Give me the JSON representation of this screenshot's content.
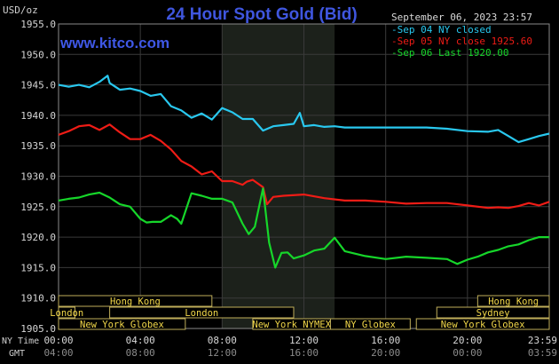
{
  "chart_data": {
    "type": "line",
    "title": "24 Hour Spot Gold (Bid)",
    "brand": "www.kitco.com",
    "ylabel": "USD/oz",
    "timestamp": "September 06, 2023 23:57",
    "ylim": [
      1905.0,
      1955.0
    ],
    "y_ticks": [
      "1955.0",
      "1950.0",
      "1945.0",
      "1940.0",
      "1935.0",
      "1930.0",
      "1925.0",
      "1920.0",
      "1915.0",
      "1910.0",
      "1905.0"
    ],
    "x_row_labels": {
      "ny": "NY Time",
      "gmt": "GMT"
    },
    "x_ticks_ny": [
      "00:00",
      "04:00",
      "08:00",
      "12:00",
      "16:00",
      "20:00",
      "23:59"
    ],
    "x_ticks_gmt": [
      "04:00",
      "08:00",
      "12:00",
      "16:00",
      "20:00",
      "00:00",
      "03:59"
    ],
    "highlight_region_hours": [
      8.0,
      13.5
    ],
    "legend_position": "top-right",
    "series": [
      {
        "name": "Sep 04 NY closed",
        "color": "#29c8ef",
        "x": [
          0,
          0.5,
          1,
          1.5,
          2,
          2.4,
          2.5,
          3,
          3.5,
          4,
          4.5,
          5,
          5.5,
          6,
          6.5,
          7,
          7.5,
          8,
          8.5,
          9,
          9.5,
          10,
          10.5,
          11,
          11.5,
          11.8,
          12,
          12.5,
          13,
          13.5,
          14,
          15,
          16,
          17,
          18,
          19,
          20,
          21,
          21.5,
          22,
          22.5,
          23,
          23.5,
          24
        ],
        "y": [
          1945,
          1944.7,
          1945,
          1944.6,
          1945.5,
          1946.5,
          1945.3,
          1944.2,
          1944.4,
          1944,
          1943.2,
          1943.5,
          1941.5,
          1940.8,
          1939.6,
          1940.3,
          1939.3,
          1941.2,
          1940.5,
          1939.4,
          1939.4,
          1937.5,
          1938.2,
          1938.4,
          1938.6,
          1940.4,
          1938.2,
          1938.4,
          1938.1,
          1938.2,
          1938,
          1938,
          1938,
          1938,
          1938,
          1937.8,
          1937.4,
          1937.3,
          1937.6,
          1936.6,
          1935.6,
          1936.1,
          1936.6,
          1937
        ]
      },
      {
        "name": "Sep 05 NY close 1925.60",
        "color": "#ef1c16",
        "x": [
          0,
          0.5,
          1,
          1.5,
          2,
          2.5,
          3,
          3.5,
          4,
          4.5,
          5,
          5.5,
          6,
          6.5,
          7,
          7.5,
          8,
          8.5,
          9,
          9.2,
          9.5,
          10,
          10.2,
          10.5,
          11,
          12,
          13,
          14,
          15,
          16,
          17,
          18,
          19,
          20,
          21,
          21.5,
          22,
          22.5,
          23,
          23.5,
          24
        ],
        "y": [
          1936.8,
          1937.4,
          1938.2,
          1938.4,
          1937.6,
          1938.5,
          1937.2,
          1936.1,
          1936.1,
          1936.8,
          1935.8,
          1934.4,
          1932.5,
          1931.6,
          1930.3,
          1930.8,
          1929.2,
          1929.2,
          1928.6,
          1929.1,
          1929.4,
          1928.2,
          1925.4,
          1926.6,
          1926.8,
          1927,
          1926.4,
          1926,
          1926,
          1925.8,
          1925.5,
          1925.6,
          1925.6,
          1925.2,
          1924.8,
          1924.9,
          1924.8,
          1925.1,
          1925.6,
          1925.2,
          1925.8
        ]
      },
      {
        "name": "Sep 06 Last 1920.00",
        "color": "#16d62a",
        "x": [
          0,
          0.5,
          1,
          1.5,
          2,
          2.5,
          3,
          3.5,
          4,
          4.3,
          4.6,
          5,
          5.5,
          5.8,
          6,
          6.5,
          7,
          7.5,
          8,
          8.5,
          9,
          9.3,
          9.6,
          10,
          10.3,
          10.6,
          10.9,
          11.2,
          11.5,
          12,
          12.5,
          13,
          13.5,
          14,
          15,
          16,
          17,
          18,
          19,
          19.5,
          20,
          20.5,
          21,
          21.5,
          22,
          22.5,
          23,
          23.5,
          24
        ],
        "y": [
          1926,
          1926.3,
          1926.5,
          1927,
          1927.3,
          1926.5,
          1925.4,
          1925,
          1923,
          1922.4,
          1922.5,
          1922.5,
          1923.6,
          1923,
          1922.2,
          1927.2,
          1926.8,
          1926.3,
          1926.3,
          1925.7,
          1922.2,
          1920.5,
          1921.7,
          1928,
          1919.1,
          1915,
          1917.4,
          1917.5,
          1916.5,
          1917,
          1917.8,
          1918.1,
          1919.9,
          1917.7,
          1916.9,
          1916.4,
          1916.8,
          1916.6,
          1916.4,
          1915.6,
          1916.3,
          1916.8,
          1917.5,
          1917.9,
          1918.5,
          1918.8,
          1919.5,
          1920,
          1920
        ]
      }
    ],
    "sessions": [
      {
        "name": "Hong Kong",
        "row": 0,
        "start": 0,
        "end": 7.5
      },
      {
        "name": "Hong Kong",
        "row": 0,
        "start": 20.5,
        "end": 24
      },
      {
        "name": "London",
        "row": 1,
        "start": 0,
        "end": 0.8
      },
      {
        "name": "London",
        "row": 1,
        "start": 2.5,
        "end": 11.5
      },
      {
        "name": "Sydney",
        "row": 1,
        "start": 18.5,
        "end": 24
      },
      {
        "name": "New York Globex",
        "row": 2,
        "start": 0,
        "end": 6.2
      },
      {
        "name": "New York NYMEX",
        "row": 2,
        "start": 9.5,
        "end": 13.3
      },
      {
        "name": "NY Globex",
        "row": 2,
        "start": 13.3,
        "end": 17.2
      },
      {
        "name": "New York Globex",
        "row": 2,
        "start": 17.5,
        "end": 24
      }
    ]
  }
}
